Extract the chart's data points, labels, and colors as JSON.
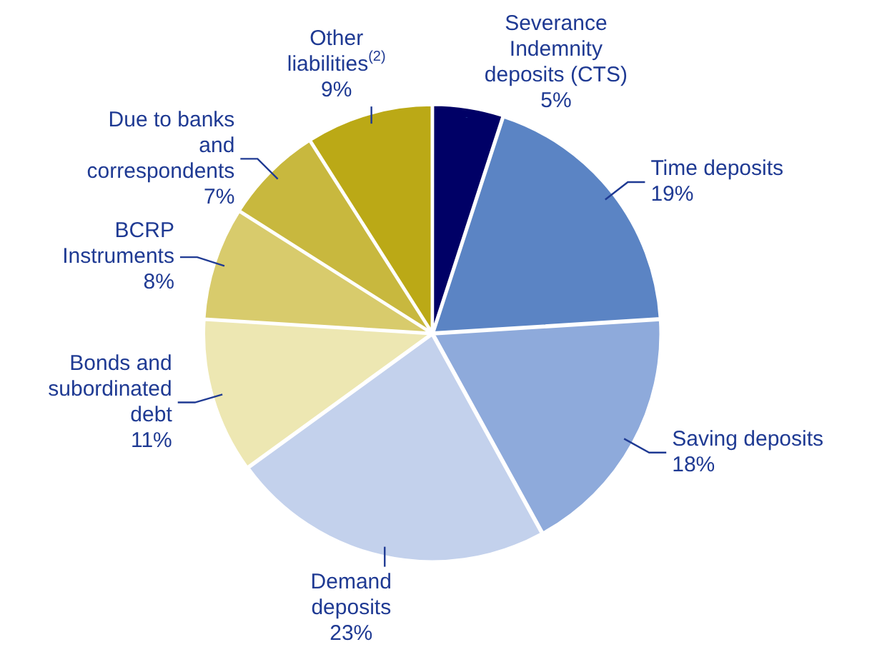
{
  "chart_data": {
    "type": "pie",
    "categories": [
      "Severance Indemnity deposits (CTS)",
      "Time deposits",
      "Saving deposits",
      "Demand deposits",
      "Bonds and subordinated debt",
      "BCRP Instruments",
      "Due to banks and correspondents",
      "Other liabilities$^{(2)}$"
    ],
    "values": [
      5,
      19,
      18,
      23,
      11,
      8,
      7,
      9
    ],
    "value_labels": [
      "5%",
      "19%",
      "18%",
      "23%",
      "11%",
      "8%",
      "7%",
      "9%"
    ],
    "colors": [
      "#000066",
      "#5b84c4",
      "#8eaadb",
      "#c3d1ec",
      "#ede7b2",
      "#d8cb6c",
      "#c8b83e",
      "#bba916"
    ],
    "legend": false
  }
}
